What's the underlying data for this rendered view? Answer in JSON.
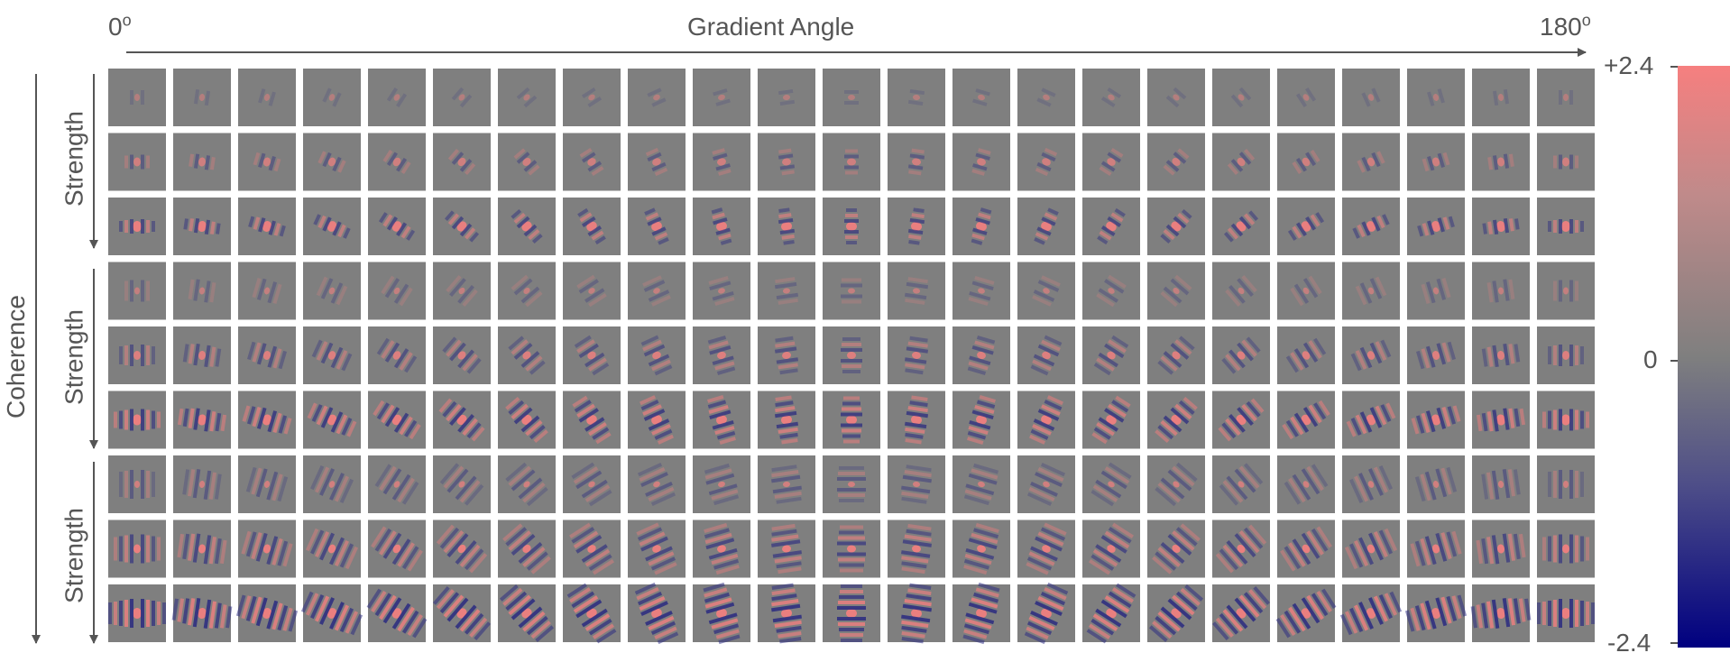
{
  "header": {
    "left": "0",
    "left_sup": "o",
    "center": "Gradient Angle",
    "right": "180",
    "right_sup": "o"
  },
  "axes": {
    "coherence": "Coherence",
    "strength_labels": [
      "Strength",
      "Strength",
      "Strength"
    ]
  },
  "grid": {
    "columns": 23,
    "rows": 9,
    "groups": 3
  },
  "colorbar": {
    "max_label": "+2.4",
    "mid_label": "0",
    "min_label": "-2.4",
    "top_color": "#f67f7f",
    "mid_color": "#7f7f7f",
    "bottom_color": "#000080"
  },
  "colors": {
    "tile_bg": "#7f7f7f",
    "positive": "#f67f7f",
    "negative": "#2a2a80"
  }
}
